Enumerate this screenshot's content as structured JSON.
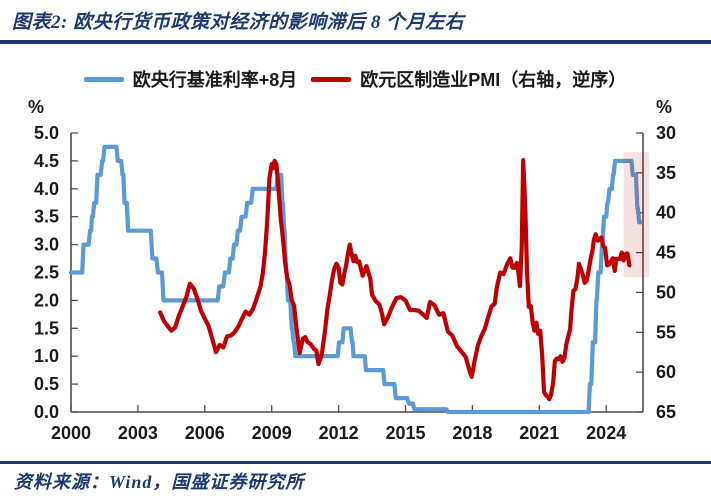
{
  "header": {
    "title": "图表2: 欧央行货币政策对经济的影响滞后 8 个月左右"
  },
  "footer": {
    "source": "资料来源：Wind，国盛证券研究所"
  },
  "colors": {
    "navy": "#1C3A6E",
    "blue_line": "#5B9BD5",
    "red_line": "#C00000",
    "axis": "#4d4d4d",
    "tick_text": "#1a1a1a",
    "highlight_band": "rgba(192,0,0,0.12)"
  },
  "chart_data": {
    "type": "line",
    "title": "图表2: 欧央行货币政策对经济的影响滞后 8 个月左右",
    "grid": false,
    "legend_position": "top",
    "x_axis": {
      "min": 2000,
      "max": 2025.65,
      "tick_years": [
        2000,
        2003,
        2006,
        2009,
        2012,
        2015,
        2018,
        2021,
        2024
      ]
    },
    "left_y_axis": {
      "unit": "%",
      "min": 0,
      "max": 5,
      "ticks": [
        "5.0",
        "4.5",
        "4.0",
        "3.5",
        "3.0",
        "2.5",
        "2.0",
        "1.5",
        "1.0",
        "0.5",
        "0.0"
      ]
    },
    "right_y_axis": {
      "unit": "%",
      "min": 30,
      "max": 65,
      "inverted": true,
      "ticks": [
        30,
        35,
        40,
        45,
        50,
        55,
        60,
        65
      ]
    },
    "highlight_band": {
      "x_range": [
        2024.78,
        2025.92
      ],
      "right_axis_value_range": [
        32.4,
        48.1
      ]
    },
    "series": [
      {
        "name": "欧央行基准利率+8月",
        "axis": "left",
        "color": "#5B9BD5",
        "points": [
          [
            2000.0,
            2.5
          ],
          [
            2000.5,
            2.5
          ],
          [
            2000.56,
            3.0
          ],
          [
            2000.79,
            3.0
          ],
          [
            2000.85,
            3.25
          ],
          [
            2000.9,
            3.25
          ],
          [
            2000.94,
            3.5
          ],
          [
            2000.98,
            3.5
          ],
          [
            2001.04,
            3.75
          ],
          [
            2001.13,
            3.75
          ],
          [
            2001.19,
            4.25
          ],
          [
            2001.33,
            4.25
          ],
          [
            2001.4,
            4.5
          ],
          [
            2001.44,
            4.5
          ],
          [
            2001.5,
            4.75
          ],
          [
            2002.04,
            4.75
          ],
          [
            2002.1,
            4.5
          ],
          [
            2002.25,
            4.5
          ],
          [
            2002.31,
            4.25
          ],
          [
            2002.35,
            4.25
          ],
          [
            2002.4,
            3.75
          ],
          [
            2002.5,
            3.75
          ],
          [
            2002.56,
            3.25
          ],
          [
            2003.58,
            3.25
          ],
          [
            2003.65,
            2.75
          ],
          [
            2003.83,
            2.75
          ],
          [
            2003.9,
            2.5
          ],
          [
            2004.08,
            2.5
          ],
          [
            2004.15,
            2.0
          ],
          [
            2006.58,
            2.0
          ],
          [
            2006.65,
            2.25
          ],
          [
            2006.83,
            2.25
          ],
          [
            2006.9,
            2.5
          ],
          [
            2007.08,
            2.5
          ],
          [
            2007.15,
            2.75
          ],
          [
            2007.25,
            2.75
          ],
          [
            2007.31,
            3.0
          ],
          [
            2007.42,
            3.0
          ],
          [
            2007.48,
            3.25
          ],
          [
            2007.58,
            3.25
          ],
          [
            2007.65,
            3.5
          ],
          [
            2007.83,
            3.5
          ],
          [
            2007.9,
            3.75
          ],
          [
            2008.08,
            3.75
          ],
          [
            2008.15,
            4.0
          ],
          [
            2009.21,
            4.0
          ],
          [
            2009.27,
            4.25
          ],
          [
            2009.42,
            4.25
          ],
          [
            2009.48,
            3.75
          ],
          [
            2009.5,
            3.75
          ],
          [
            2009.56,
            3.25
          ],
          [
            2009.58,
            3.25
          ],
          [
            2009.65,
            2.5
          ],
          [
            2009.67,
            2.5
          ],
          [
            2009.73,
            2.0
          ],
          [
            2009.83,
            2.0
          ],
          [
            2009.9,
            1.5
          ],
          [
            2009.92,
            1.5
          ],
          [
            2009.98,
            1.25
          ],
          [
            2010.0,
            1.25
          ],
          [
            2010.06,
            1.0
          ],
          [
            2011.96,
            1.0
          ],
          [
            2012.02,
            1.25
          ],
          [
            2012.17,
            1.25
          ],
          [
            2012.23,
            1.5
          ],
          [
            2012.54,
            1.5
          ],
          [
            2012.6,
            1.25
          ],
          [
            2012.63,
            1.25
          ],
          [
            2012.67,
            1.0
          ],
          [
            2013.17,
            1.0
          ],
          [
            2013.23,
            0.75
          ],
          [
            2014.0,
            0.75
          ],
          [
            2014.06,
            0.5
          ],
          [
            2014.5,
            0.5
          ],
          [
            2014.56,
            0.25
          ],
          [
            2015.08,
            0.25
          ],
          [
            2015.15,
            0.15
          ],
          [
            2015.33,
            0.15
          ],
          [
            2015.4,
            0.05
          ],
          [
            2016.83,
            0.05
          ],
          [
            2016.9,
            0.0
          ],
          [
            2023.21,
            0.0
          ],
          [
            2023.27,
            0.5
          ],
          [
            2023.33,
            0.5
          ],
          [
            2023.4,
            1.25
          ],
          [
            2023.5,
            1.25
          ],
          [
            2023.56,
            2.0
          ],
          [
            2023.58,
            2.0
          ],
          [
            2023.65,
            2.5
          ],
          [
            2023.75,
            2.5
          ],
          [
            2023.81,
            3.0
          ],
          [
            2023.83,
            3.0
          ],
          [
            2023.9,
            3.5
          ],
          [
            2024.0,
            3.5
          ],
          [
            2024.06,
            3.75
          ],
          [
            2024.08,
            3.75
          ],
          [
            2024.15,
            4.0
          ],
          [
            2024.25,
            4.0
          ],
          [
            2024.31,
            4.25
          ],
          [
            2024.33,
            4.25
          ],
          [
            2024.4,
            4.5
          ],
          [
            2025.13,
            4.5
          ],
          [
            2025.19,
            4.25
          ],
          [
            2025.33,
            4.25
          ],
          [
            2025.4,
            3.65
          ],
          [
            2025.42,
            3.65
          ],
          [
            2025.48,
            3.4
          ],
          [
            2025.55,
            3.4
          ]
        ]
      },
      {
        "name": "欧元区制造业PMI（右轴，逆序）",
        "axis": "right",
        "color": "#C00000",
        "points": [
          [
            2004.0,
            52.5
          ],
          [
            2004.17,
            53.6
          ],
          [
            2004.33,
            54.2
          ],
          [
            2004.5,
            54.8
          ],
          [
            2004.67,
            54.4
          ],
          [
            2004.83,
            53.0
          ],
          [
            2005.0,
            51.8
          ],
          [
            2005.17,
            50.6
          ],
          [
            2005.33,
            48.9
          ],
          [
            2005.5,
            49.5
          ],
          [
            2005.67,
            50.8
          ],
          [
            2005.83,
            52.3
          ],
          [
            2006.0,
            53.3
          ],
          [
            2006.17,
            54.2
          ],
          [
            2006.33,
            55.8
          ],
          [
            2006.5,
            57.5
          ],
          [
            2006.67,
            56.6
          ],
          [
            2006.83,
            56.9
          ],
          [
            2007.0,
            55.5
          ],
          [
            2007.17,
            55.4
          ],
          [
            2007.33,
            55.0
          ],
          [
            2007.5,
            54.3
          ],
          [
            2007.67,
            53.3
          ],
          [
            2007.83,
            52.4
          ],
          [
            2008.0,
            52.8
          ],
          [
            2008.17,
            52.0
          ],
          [
            2008.33,
            50.7
          ],
          [
            2008.5,
            49.2
          ],
          [
            2008.6,
            47.6
          ],
          [
            2008.7,
            45.0
          ],
          [
            2008.8,
            41.1
          ],
          [
            2008.9,
            35.6
          ],
          [
            2009.0,
            33.9
          ],
          [
            2009.08,
            34.4
          ],
          [
            2009.13,
            33.5
          ],
          [
            2009.21,
            33.9
          ],
          [
            2009.3,
            36.8
          ],
          [
            2009.4,
            40.5
          ],
          [
            2009.5,
            43.2
          ],
          [
            2009.6,
            46.2
          ],
          [
            2009.7,
            48.2
          ],
          [
            2009.8,
            49.0
          ],
          [
            2009.9,
            51.0
          ],
          [
            2010.0,
            51.6
          ],
          [
            2010.1,
            54.2
          ],
          [
            2010.25,
            57.6
          ],
          [
            2010.4,
            55.8
          ],
          [
            2010.5,
            55.6
          ],
          [
            2010.6,
            56.2
          ],
          [
            2010.75,
            56.5
          ],
          [
            2010.9,
            57.1
          ],
          [
            2011.0,
            57.3
          ],
          [
            2011.1,
            59.0
          ],
          [
            2011.25,
            57.7
          ],
          [
            2011.4,
            54.6
          ],
          [
            2011.5,
            52.0
          ],
          [
            2011.6,
            50.4
          ],
          [
            2011.7,
            48.5
          ],
          [
            2011.8,
            47.1
          ],
          [
            2011.9,
            46.4
          ],
          [
            2012.0,
            46.9
          ],
          [
            2012.08,
            48.8
          ],
          [
            2012.17,
            49.0
          ],
          [
            2012.25,
            47.7
          ],
          [
            2012.33,
            46.7
          ],
          [
            2012.42,
            45.1
          ],
          [
            2012.5,
            44.0
          ],
          [
            2012.58,
            45.1
          ],
          [
            2012.67,
            46.1
          ],
          [
            2012.75,
            45.4
          ],
          [
            2012.83,
            46.2
          ],
          [
            2012.92,
            46.1
          ],
          [
            2013.08,
            47.9
          ],
          [
            2013.25,
            46.7
          ],
          [
            2013.42,
            48.3
          ],
          [
            2013.5,
            50.3
          ],
          [
            2013.67,
            51.1
          ],
          [
            2013.83,
            51.5
          ],
          [
            2013.95,
            52.7
          ],
          [
            2014.04,
            54.0
          ],
          [
            2014.2,
            53.2
          ],
          [
            2014.4,
            51.8
          ],
          [
            2014.6,
            50.7
          ],
          [
            2014.8,
            50.6
          ],
          [
            2015.0,
            51.0
          ],
          [
            2015.2,
            52.2
          ],
          [
            2015.4,
            52.2
          ],
          [
            2015.6,
            52.3
          ],
          [
            2015.8,
            52.8
          ],
          [
            2015.95,
            53.2
          ],
          [
            2016.1,
            51.2
          ],
          [
            2016.3,
            51.6
          ],
          [
            2016.5,
            52.8
          ],
          [
            2016.7,
            52.6
          ],
          [
            2016.9,
            54.9
          ],
          [
            2017.1,
            55.4
          ],
          [
            2017.3,
            56.7
          ],
          [
            2017.5,
            57.4
          ],
          [
            2017.7,
            58.1
          ],
          [
            2017.9,
            60.1
          ],
          [
            2017.97,
            60.6
          ],
          [
            2018.1,
            58.6
          ],
          [
            2018.25,
            56.6
          ],
          [
            2018.4,
            55.5
          ],
          [
            2018.55,
            54.6
          ],
          [
            2018.7,
            53.2
          ],
          [
            2018.85,
            51.8
          ],
          [
            2019.0,
            51.4
          ],
          [
            2019.1,
            49.3
          ],
          [
            2019.25,
            47.5
          ],
          [
            2019.4,
            47.7
          ],
          [
            2019.55,
            46.5
          ],
          [
            2019.7,
            45.7
          ],
          [
            2019.8,
            46.9
          ],
          [
            2019.9,
            46.9
          ],
          [
            2020.0,
            46.3
          ],
          [
            2020.08,
            47.9
          ],
          [
            2020.13,
            49.2
          ],
          [
            2020.21,
            44.5
          ],
          [
            2020.28,
            33.4
          ],
          [
            2020.37,
            39.4
          ],
          [
            2020.45,
            47.4
          ],
          [
            2020.53,
            51.8
          ],
          [
            2020.62,
            51.7
          ],
          [
            2020.7,
            53.7
          ],
          [
            2020.78,
            54.8
          ],
          [
            2020.87,
            53.8
          ],
          [
            2020.95,
            55.2
          ],
          [
            2021.04,
            54.8
          ],
          [
            2021.13,
            57.9
          ],
          [
            2021.21,
            62.5
          ],
          [
            2021.3,
            62.9
          ],
          [
            2021.38,
            63.1
          ],
          [
            2021.45,
            63.4
          ],
          [
            2021.53,
            62.8
          ],
          [
            2021.62,
            61.4
          ],
          [
            2021.7,
            58.6
          ],
          [
            2021.78,
            58.3
          ],
          [
            2021.87,
            58.4
          ],
          [
            2021.95,
            58.0
          ],
          [
            2022.04,
            58.7
          ],
          [
            2022.13,
            58.2
          ],
          [
            2022.21,
            56.5
          ],
          [
            2022.3,
            55.5
          ],
          [
            2022.38,
            54.6
          ],
          [
            2022.45,
            52.1
          ],
          [
            2022.53,
            49.8
          ],
          [
            2022.62,
            49.6
          ],
          [
            2022.7,
            48.4
          ],
          [
            2022.78,
            46.4
          ],
          [
            2022.87,
            47.1
          ],
          [
            2022.95,
            47.8
          ],
          [
            2023.04,
            48.8
          ],
          [
            2023.13,
            48.5
          ],
          [
            2023.21,
            47.3
          ],
          [
            2023.3,
            45.8
          ],
          [
            2023.38,
            44.8
          ],
          [
            2023.45,
            43.4
          ],
          [
            2023.53,
            42.7
          ],
          [
            2023.62,
            43.5
          ],
          [
            2023.7,
            43.4
          ],
          [
            2023.78,
            43.1
          ],
          [
            2023.87,
            44.2
          ],
          [
            2023.95,
            44.4
          ],
          [
            2024.04,
            46.6
          ],
          [
            2024.13,
            46.5
          ],
          [
            2024.21,
            46.1
          ],
          [
            2024.3,
            45.7
          ],
          [
            2024.38,
            47.3
          ],
          [
            2024.45,
            45.8
          ],
          [
            2024.53,
            45.8
          ],
          [
            2024.62,
            45.8
          ],
          [
            2024.7,
            45.0
          ],
          [
            2024.78,
            46.0
          ],
          [
            2024.87,
            45.2
          ],
          [
            2024.95,
            45.1
          ],
          [
            2025.04,
            46.6
          ]
        ]
      }
    ]
  }
}
